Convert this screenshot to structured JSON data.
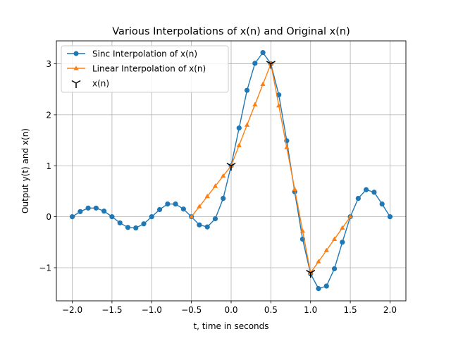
{
  "chart_data": {
    "type": "line",
    "title": "Various Interpolations of x(n) and Original x(n)",
    "xlabel": "t, time in seconds",
    "ylabel": "Output y(t) and x(n)",
    "xlim": [
      -2.2,
      2.2
    ],
    "ylim": [
      -1.65,
      3.45
    ],
    "xticks": [
      -2.0,
      -1.5,
      -1.0,
      -0.5,
      0.0,
      0.5,
      1.0,
      1.5,
      2.0
    ],
    "xtick_labels": [
      "−2.0",
      "−1.5",
      "−1.0",
      "−0.5",
      "0.0",
      "0.5",
      "1.0",
      "1.5",
      "2.0"
    ],
    "yticks": [
      -1,
      0,
      1,
      2,
      3
    ],
    "ytick_labels": [
      "−1",
      "0",
      "1",
      "2",
      "3"
    ],
    "grid": true,
    "legend_position": "upper-left",
    "series": [
      {
        "name": "Sinc Interpolation of x(n)",
        "color": "#1f77b4",
        "marker": "circle",
        "x": [
          -2.0,
          -1.9,
          -1.8,
          -1.7,
          -1.6,
          -1.5,
          -1.4,
          -1.3,
          -1.2,
          -1.1,
          -1.0,
          -0.9,
          -0.8,
          -0.7,
          -0.6,
          -0.5,
          -0.4,
          -0.3,
          -0.2,
          -0.1,
          0.0,
          0.1,
          0.2,
          0.3,
          0.4,
          0.5,
          0.6,
          0.7,
          0.8,
          0.9,
          1.0,
          1.1,
          1.2,
          1.3,
          1.4,
          1.5,
          1.6,
          1.7,
          1.8,
          1.9,
          2.0
        ],
        "y": [
          0.0,
          0.1,
          0.17,
          0.17,
          0.11,
          0.0,
          -0.12,
          -0.21,
          -0.22,
          -0.14,
          0.0,
          0.14,
          0.25,
          0.25,
          0.15,
          0.0,
          -0.16,
          -0.2,
          -0.04,
          0.36,
          1.0,
          1.74,
          2.48,
          3.01,
          3.22,
          3.0,
          2.39,
          1.49,
          0.49,
          -0.44,
          -1.12,
          -1.41,
          -1.36,
          -1.02,
          -0.5,
          0.0,
          0.36,
          0.53,
          0.48,
          0.25,
          0.0
        ]
      },
      {
        "name": "Linear Interpolation of x(n)",
        "color": "#ff7f0e",
        "marker": "triangle",
        "x": [
          -0.5,
          -0.4,
          -0.3,
          -0.2,
          -0.1,
          0.0,
          0.1,
          0.2,
          0.3,
          0.4,
          0.5,
          0.6,
          0.7,
          0.8,
          0.9,
          1.0,
          1.1,
          1.2,
          1.3,
          1.4,
          1.5
        ],
        "y": [
          0.0,
          0.2,
          0.4,
          0.6,
          0.8,
          1.0,
          1.4,
          1.8,
          2.2,
          2.6,
          3.0,
          2.18,
          1.36,
          0.54,
          -0.28,
          -1.1,
          -0.88,
          -0.66,
          -0.44,
          -0.22,
          0.0
        ]
      },
      {
        "name": "x(n)",
        "color": "#000000",
        "marker": "tri_down",
        "x": [
          0.0,
          0.5,
          1.0
        ],
        "y": [
          1.0,
          3.0,
          -1.1
        ]
      }
    ]
  }
}
